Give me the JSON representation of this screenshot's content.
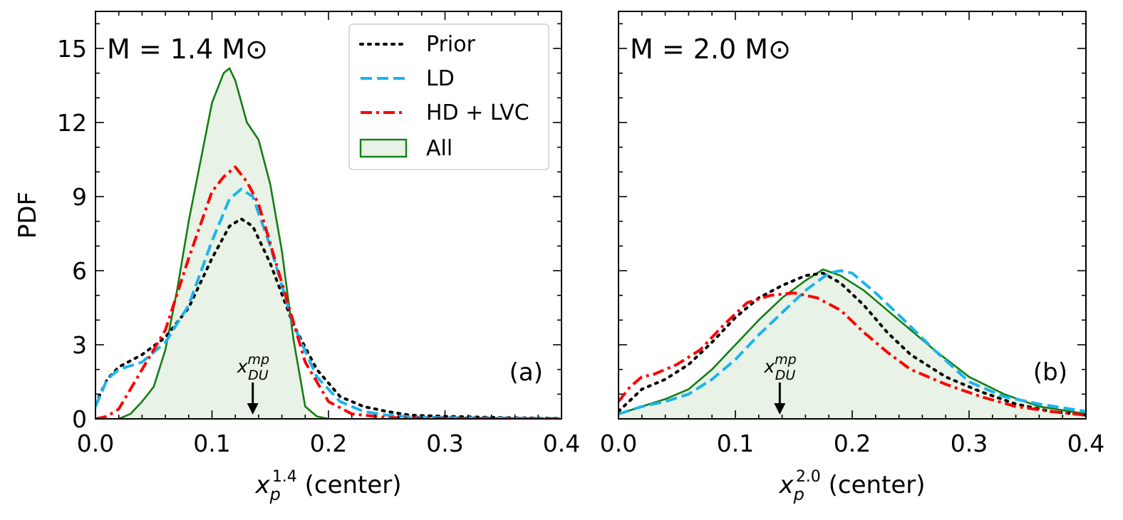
{
  "chart_data": [
    {
      "type": "line",
      "panel": "(a)",
      "annotation": "M = 1.4 M⊙",
      "xlabel_main": "x",
      "xlabel_sub": "p",
      "xlabel_sup": "1.4",
      "xlabel_rest": " (center)",
      "ylabel": "PDF",
      "xlim": [
        0.0,
        0.4
      ],
      "ylim": [
        0,
        16.5
      ],
      "xticks": [
        "0.0",
        "0.1",
        "0.2",
        "0.3",
        "0.4"
      ],
      "yticks": [
        "0",
        "3",
        "6",
        "9",
        "12",
        "15"
      ],
      "marker": {
        "x": 0.135,
        "label_main": "x",
        "label_sup": "mp",
        "label_sub": "DU"
      },
      "series": [
        {
          "name": "Prior",
          "style": "dotted",
          "color": "#000000",
          "x": [
            0.0,
            0.01,
            0.02,
            0.04,
            0.06,
            0.08,
            0.1,
            0.115,
            0.125,
            0.135,
            0.15,
            0.17,
            0.19,
            0.21,
            0.23,
            0.25,
            0.27,
            0.3,
            0.35,
            0.4
          ],
          "y": [
            0.6,
            1.6,
            2.1,
            2.6,
            3.3,
            4.5,
            6.5,
            7.8,
            8.1,
            7.8,
            6.3,
            3.8,
            2.0,
            0.9,
            0.5,
            0.3,
            0.15,
            0.1,
            0.05,
            0.02
          ]
        },
        {
          "name": "LD",
          "style": "dashed",
          "color": "#1bb4ee",
          "x": [
            0.0,
            0.01,
            0.02,
            0.04,
            0.06,
            0.08,
            0.1,
            0.115,
            0.125,
            0.135,
            0.15,
            0.17,
            0.19,
            0.21,
            0.23,
            0.25,
            0.27,
            0.3,
            0.35,
            0.4
          ],
          "y": [
            0.5,
            1.6,
            2.0,
            2.3,
            3.1,
            4.6,
            7.2,
            8.9,
            9.3,
            9.0,
            7.0,
            3.8,
            1.7,
            0.7,
            0.3,
            0.15,
            0.08,
            0.05,
            0.03,
            0.01
          ]
        },
        {
          "name": "HD + LVC",
          "style": "dashdot",
          "color": "#ff0000",
          "x": [
            0.0,
            0.01,
            0.02,
            0.03,
            0.04,
            0.06,
            0.08,
            0.1,
            0.11,
            0.12,
            0.13,
            0.14,
            0.16,
            0.18,
            0.2,
            0.22,
            0.25,
            0.3,
            0.4
          ],
          "y": [
            0.0,
            0.1,
            0.4,
            1.2,
            2.0,
            3.6,
            6.5,
            9.2,
            9.8,
            10.2,
            9.6,
            8.7,
            5.5,
            2.3,
            0.7,
            0.2,
            0.05,
            0.02,
            0.0
          ]
        },
        {
          "name": "All",
          "style": "filled",
          "color": "#137e13",
          "fill": "#e8f2e6",
          "x": [
            0.02,
            0.03,
            0.04,
            0.05,
            0.06,
            0.07,
            0.08,
            0.09,
            0.1,
            0.11,
            0.115,
            0.12,
            0.13,
            0.14,
            0.15,
            0.16,
            0.17,
            0.18,
            0.19,
            0.2
          ],
          "y": [
            0.0,
            0.2,
            0.7,
            1.3,
            2.8,
            5.2,
            8.0,
            10.4,
            12.8,
            14.0,
            14.2,
            13.7,
            12.0,
            11.3,
            9.5,
            6.8,
            3.2,
            0.5,
            0.1,
            0.0
          ]
        }
      ]
    },
    {
      "type": "line",
      "panel": "(b)",
      "annotation": "M = 2.0 M⊙",
      "xlabel_main": "x",
      "xlabel_sub": "p",
      "xlabel_sup": "2.0",
      "xlabel_rest": " (center)",
      "ylabel": "",
      "xlim": [
        0.0,
        0.4
      ],
      "ylim": [
        0,
        16.5
      ],
      "xticks": [
        "0.0",
        "0.1",
        "0.2",
        "0.3",
        "0.4"
      ],
      "yticks": [],
      "marker": {
        "x": 0.138,
        "label_main": "x",
        "label_sup": "mp",
        "label_sub": "DU"
      },
      "series": [
        {
          "name": "Prior",
          "style": "dotted",
          "color": "#000000",
          "x": [
            0.0,
            0.02,
            0.04,
            0.06,
            0.08,
            0.1,
            0.12,
            0.14,
            0.16,
            0.175,
            0.19,
            0.21,
            0.23,
            0.25,
            0.28,
            0.31,
            0.34,
            0.37,
            0.4
          ],
          "y": [
            0.3,
            1.2,
            1.6,
            2.2,
            3.1,
            4.1,
            4.9,
            5.4,
            5.8,
            5.9,
            5.5,
            4.6,
            3.5,
            2.6,
            1.7,
            1.1,
            0.6,
            0.3,
            0.15
          ]
        },
        {
          "name": "LD",
          "style": "dashed",
          "color": "#1bb4ee",
          "x": [
            0.0,
            0.02,
            0.04,
            0.06,
            0.08,
            0.1,
            0.12,
            0.14,
            0.16,
            0.18,
            0.19,
            0.2,
            0.22,
            0.24,
            0.27,
            0.3,
            0.33,
            0.36,
            0.4
          ],
          "y": [
            0.2,
            0.5,
            0.7,
            1.0,
            1.6,
            2.4,
            3.4,
            4.3,
            5.2,
            5.9,
            6.0,
            5.9,
            5.1,
            4.2,
            2.8,
            1.5,
            0.9,
            0.6,
            0.3
          ]
        },
        {
          "name": "HD + LVC",
          "style": "dashdot",
          "color": "#ff0000",
          "x": [
            0.0,
            0.01,
            0.02,
            0.03,
            0.05,
            0.07,
            0.09,
            0.11,
            0.13,
            0.15,
            0.17,
            0.19,
            0.21,
            0.23,
            0.25,
            0.28,
            0.31,
            0.34,
            0.37,
            0.4
          ],
          "y": [
            0.7,
            1.3,
            1.7,
            1.8,
            2.2,
            2.8,
            3.8,
            4.7,
            5.0,
            5.1,
            4.9,
            4.4,
            3.5,
            2.7,
            2.0,
            1.4,
            0.9,
            0.5,
            0.3,
            0.15
          ]
        },
        {
          "name": "All",
          "style": "filled",
          "color": "#137e13",
          "fill": "#e8f2e6",
          "x": [
            0.0,
            0.02,
            0.04,
            0.06,
            0.08,
            0.1,
            0.12,
            0.14,
            0.16,
            0.175,
            0.19,
            0.21,
            0.23,
            0.25,
            0.27,
            0.3,
            0.33,
            0.36,
            0.4
          ],
          "y": [
            0.2,
            0.5,
            0.8,
            1.2,
            2.0,
            3.0,
            4.0,
            4.9,
            5.6,
            6.05,
            5.8,
            5.2,
            4.4,
            3.6,
            2.8,
            1.7,
            1.0,
            0.5,
            0.2
          ]
        }
      ]
    }
  ]
}
